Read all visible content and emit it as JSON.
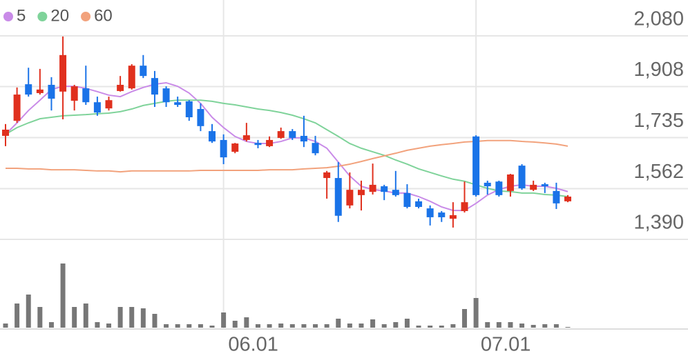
{
  "chart_data": {
    "type": "candlestick",
    "categories": [
      null,
      null,
      null,
      null,
      null,
      null,
      null,
      null,
      null,
      null,
      null,
      null,
      null,
      null,
      null,
      null,
      null,
      null,
      null,
      "06.01",
      null,
      null,
      null,
      null,
      null,
      null,
      null,
      null,
      null,
      null,
      null,
      null,
      null,
      null,
      null,
      null,
      null,
      null,
      null,
      null,
      null,
      "07.01",
      null,
      null,
      null,
      null,
      null,
      null,
      null,
      null
    ],
    "open": [
      1741,
      1792,
      1916,
      1886,
      1914,
      1891,
      1860,
      1902,
      1855,
      1834,
      1893,
      1902,
      1979,
      1937,
      1902,
      1855,
      1858,
      1832,
      1757,
      1727,
      1687,
      1727,
      1717,
      1706,
      1734,
      1757,
      1741,
      1717,
      1598,
      1598,
      1505,
      1540,
      1551,
      1570,
      1558,
      1547,
      1519,
      1495,
      1481,
      1460,
      1486,
      1739,
      1582,
      1586,
      1554,
      1640,
      1558,
      1577,
      1554,
      1519
    ],
    "high": [
      1781,
      1905,
      1972,
      1968,
      1940,
      2078,
      1914,
      1979,
      1874,
      1874,
      1944,
      1984,
      2015,
      1961,
      1909,
      1874,
      1862,
      1851,
      1781,
      1746,
      1717,
      1785,
      1727,
      1739,
      1769,
      1764,
      1809,
      1741,
      1622,
      1652,
      1617,
      1589,
      1647,
      1575,
      1622,
      1577,
      1528,
      1505,
      1486,
      1516,
      1586,
      1743,
      1589,
      1589,
      1612,
      1645,
      1589,
      1582,
      1582,
      1540
    ],
    "low": [
      1706,
      1785,
      1874,
      1881,
      1827,
      1797,
      1827,
      1846,
      1809,
      1827,
      1891,
      1898,
      1937,
      1839,
      1839,
      1839,
      1792,
      1757,
      1717,
      1645,
      1682,
      1722,
      1699,
      1703,
      1731,
      1727,
      1703,
      1675,
      1528,
      1449,
      1495,
      1488,
      1542,
      1523,
      1535,
      1495,
      1495,
      1437,
      1449,
      1430,
      1481,
      1535,
      1542,
      1535,
      1535,
      1558,
      1554,
      1547,
      1493,
      1516
    ],
    "close": [
      1762,
      1881,
      1881,
      1898,
      1867,
      2015,
      1909,
      1855,
      1820,
      1862,
      1914,
      1979,
      1944,
      1881,
      1855,
      1846,
      1804,
      1774,
      1722,
      1668,
      1715,
      1743,
      1710,
      1727,
      1757,
      1734,
      1722,
      1682,
      1617,
      1470,
      1558,
      1558,
      1575,
      1551,
      1540,
      1500,
      1500,
      1465,
      1465,
      1472,
      1516,
      1540,
      1570,
      1540,
      1610,
      1563,
      1575,
      1570,
      1512,
      1535
    ],
    "volume": [
      6,
      35,
      48,
      30,
      8,
      93,
      30,
      35,
      8,
      6,
      30,
      30,
      28,
      20,
      5,
      5,
      5,
      5,
      3,
      22,
      10,
      15,
      5,
      5,
      6,
      5,
      5,
      5,
      5,
      13,
      6,
      6,
      12,
      5,
      8,
      13,
      3,
      3,
      3,
      5,
      27,
      43,
      8,
      8,
      8,
      6,
      4,
      5,
      5,
      1
    ],
    "up_color": "#e0301e",
    "down_color": "#1a73e8",
    "volume_color": "#777777",
    "series": [
      {
        "name": "5",
        "color": "#c98be8",
        "values": [
          1746,
          1785,
          1827,
          1862,
          1898,
          1909,
          1909,
          1902,
          1891,
          1879,
          1874,
          1891,
          1905,
          1916,
          1921,
          1909,
          1886,
          1851,
          1804,
          1769,
          1739,
          1722,
          1715,
          1715,
          1722,
          1734,
          1734,
          1722,
          1699,
          1652,
          1605,
          1570,
          1559,
          1554,
          1547,
          1547,
          1535,
          1519,
          1500,
          1488,
          1488,
          1512,
          1540,
          1559,
          1570,
          1575,
          1570,
          1570,
          1563,
          1552
        ]
      },
      {
        "name": "20",
        "color": "#7fd39a",
        "values": [
          1746,
          1769,
          1785,
          1799,
          1804,
          1809,
          1811,
          1813,
          1816,
          1818,
          1823,
          1832,
          1844,
          1851,
          1858,
          1862,
          1862,
          1862,
          1858,
          1851,
          1846,
          1839,
          1832,
          1827,
          1820,
          1811,
          1799,
          1785,
          1762,
          1739,
          1715,
          1699,
          1687,
          1675,
          1659,
          1645,
          1629,
          1617,
          1605,
          1594,
          1587,
          1575,
          1563,
          1554,
          1552,
          1547,
          1547,
          1542,
          1540,
          1535
        ]
      },
      {
        "name": "60",
        "color": "#f2a27c",
        "values": [
          1631,
          1631,
          1629,
          1629,
          1626,
          1626,
          1626,
          1624,
          1622,
          1622,
          1619,
          1622,
          1622,
          1622,
          1622,
          1622,
          1622,
          1624,
          1624,
          1624,
          1624,
          1624,
          1624,
          1626,
          1626,
          1626,
          1629,
          1631,
          1633,
          1638,
          1645,
          1654,
          1664,
          1673,
          1682,
          1692,
          1699,
          1706,
          1711,
          1715,
          1720,
          1722,
          1725,
          1725,
          1725,
          1722,
          1720,
          1717,
          1713,
          1706
        ]
      }
    ],
    "ylim": [
      1390,
      2080
    ],
    "yticks": [
      {
        "value": 2080,
        "label": "2,080"
      },
      {
        "value": 1908,
        "label": "1,908"
      },
      {
        "value": 1735,
        "label": "1,735"
      },
      {
        "value": 1562,
        "label": "1,562"
      },
      {
        "value": 1390,
        "label": "1,390"
      }
    ],
    "grid": true
  }
}
